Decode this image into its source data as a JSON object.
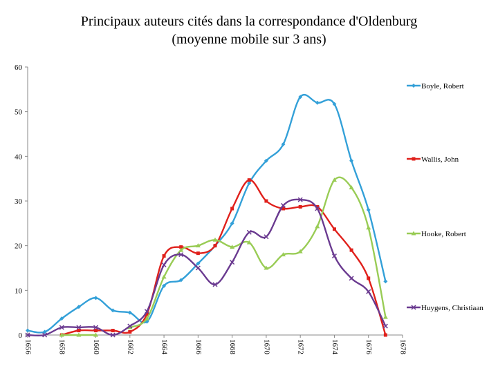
{
  "chart_data": {
    "type": "line",
    "title": "Principaux auteurs cités dans la correspondance d'Oldenburg",
    "subtitle": "(moyenne mobile sur 3 ans)",
    "xlabel": "",
    "ylabel": "",
    "ylim": [
      0,
      60
    ],
    "xlim": [
      1656,
      1678
    ],
    "yticks": [
      "0",
      "10",
      "20",
      "30",
      "40",
      "50",
      "60"
    ],
    "xticks": [
      "1656",
      "1658",
      "1660",
      "1662",
      "1664",
      "1666",
      "1668",
      "1670",
      "1672",
      "1674",
      "1676",
      "1678"
    ],
    "grid": false,
    "legend": "right",
    "x": [
      1656,
      1657,
      1658,
      1659,
      1660,
      1661,
      1662,
      1663,
      1664,
      1665,
      1666,
      1667,
      1668,
      1669,
      1670,
      1671,
      1672,
      1673,
      1674,
      1675,
      1676,
      1677
    ],
    "series": [
      {
        "name": "Boyle, Robert",
        "color": "#33a0d8",
        "marker": "diamond",
        "values": [
          1.0,
          0.7,
          3.7,
          6.3,
          8.3,
          5.5,
          5.0,
          3.0,
          11.0,
          12.3,
          16.0,
          20.0,
          25.0,
          34.0,
          39.0,
          42.7,
          53.3,
          52.0,
          51.7,
          39.0,
          28.0,
          12.0
        ]
      },
      {
        "name": "Wallis, John",
        "color": "#e0201b",
        "marker": "square",
        "values": [
          null,
          null,
          0.0,
          1.0,
          1.0,
          1.0,
          0.7,
          4.7,
          17.7,
          19.7,
          18.3,
          20.0,
          28.3,
          34.7,
          30.0,
          28.3,
          28.7,
          28.7,
          23.7,
          19.0,
          12.7,
          0.0
        ]
      },
      {
        "name": "Hooke, Robert",
        "color": "#99cc55",
        "marker": "triangle",
        "values": [
          null,
          null,
          0.0,
          0.0,
          0.0,
          null,
          1.7,
          3.7,
          13.0,
          19.0,
          20.0,
          21.3,
          19.7,
          20.7,
          15.0,
          18.0,
          18.7,
          24.3,
          34.7,
          33.0,
          24.0,
          4.0
        ]
      },
      {
        "name": "Huygens, Christiaan",
        "color": "#6a3a90",
        "marker": "x",
        "values": [
          0.0,
          0.0,
          1.7,
          1.7,
          1.7,
          0.0,
          2.0,
          5.3,
          15.7,
          18.0,
          15.0,
          11.3,
          16.3,
          23.0,
          22.0,
          29.0,
          30.3,
          28.3,
          17.7,
          12.7,
          9.7,
          2.0
        ]
      }
    ]
  }
}
